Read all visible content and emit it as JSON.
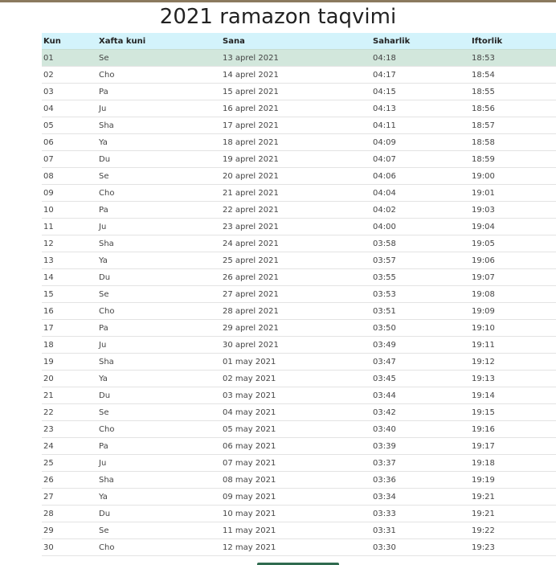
{
  "page": {
    "title": "2021 ramazon taqvimi"
  },
  "table": {
    "headers": [
      "Kun",
      "Xafta kuni",
      "Sana",
      "Saharlik",
      "Iftorlik"
    ],
    "rows": [
      [
        "01",
        "Se",
        "13 aprel 2021",
        "04:18",
        "18:53"
      ],
      [
        "02",
        "Cho",
        "14 aprel 2021",
        "04:17",
        "18:54"
      ],
      [
        "03",
        "Pa",
        "15 aprel 2021",
        "04:15",
        "18:55"
      ],
      [
        "04",
        "Ju",
        "16 aprel 2021",
        "04:13",
        "18:56"
      ],
      [
        "05",
        "Sha",
        "17 aprel 2021",
        "04:11",
        "18:57"
      ],
      [
        "06",
        "Ya",
        "18 aprel 2021",
        "04:09",
        "18:58"
      ],
      [
        "07",
        "Du",
        "19 aprel 2021",
        "04:07",
        "18:59"
      ],
      [
        "08",
        "Se",
        "20 aprel 2021",
        "04:06",
        "19:00"
      ],
      [
        "09",
        "Cho",
        "21 aprel 2021",
        "04:04",
        "19:01"
      ],
      [
        "10",
        "Pa",
        "22 aprel 2021",
        "04:02",
        "19:03"
      ],
      [
        "11",
        "Ju",
        "23 aprel 2021",
        "04:00",
        "19:04"
      ],
      [
        "12",
        "Sha",
        "24 aprel 2021",
        "03:58",
        "19:05"
      ],
      [
        "13",
        "Ya",
        "25 aprel 2021",
        "03:57",
        "19:06"
      ],
      [
        "14",
        "Du",
        "26 aprel 2021",
        "03:55",
        "19:07"
      ],
      [
        "15",
        "Se",
        "27 aprel 2021",
        "03:53",
        "19:08"
      ],
      [
        "16",
        "Cho",
        "28 aprel 2021",
        "03:51",
        "19:09"
      ],
      [
        "17",
        "Pa",
        "29 aprel 2021",
        "03:50",
        "19:10"
      ],
      [
        "18",
        "Ju",
        "30 aprel 2021",
        "03:49",
        "19:11"
      ],
      [
        "19",
        "Sha",
        "01 may 2021",
        "03:47",
        "19:12"
      ],
      [
        "20",
        "Ya",
        "02 may 2021",
        "03:45",
        "19:13"
      ],
      [
        "21",
        "Du",
        "03 may 2021",
        "03:44",
        "19:14"
      ],
      [
        "22",
        "Se",
        "04 may 2021",
        "03:42",
        "19:15"
      ],
      [
        "23",
        "Cho",
        "05 may 2021",
        "03:40",
        "19:16"
      ],
      [
        "24",
        "Pa",
        "06 may 2021",
        "03:39",
        "19:17"
      ],
      [
        "25",
        "Ju",
        "07 may 2021",
        "03:37",
        "19:18"
      ],
      [
        "26",
        "Sha",
        "08 may 2021",
        "03:36",
        "19:19"
      ],
      [
        "27",
        "Ya",
        "09 may 2021",
        "03:34",
        "19:21"
      ],
      [
        "28",
        "Du",
        "10 may 2021",
        "03:33",
        "19:21"
      ],
      [
        "29",
        "Se",
        "11 may 2021",
        "03:31",
        "19:22"
      ],
      [
        "30",
        "Cho",
        "12 may 2021",
        "03:30",
        "19:23"
      ]
    ],
    "highlighted_row": 0
  },
  "colors": {
    "header_background": "#d3f3fb",
    "highlight_background": "#d2e7dc",
    "top_bar": "#8b7a5e",
    "footer_button": "#2f6b4f"
  }
}
